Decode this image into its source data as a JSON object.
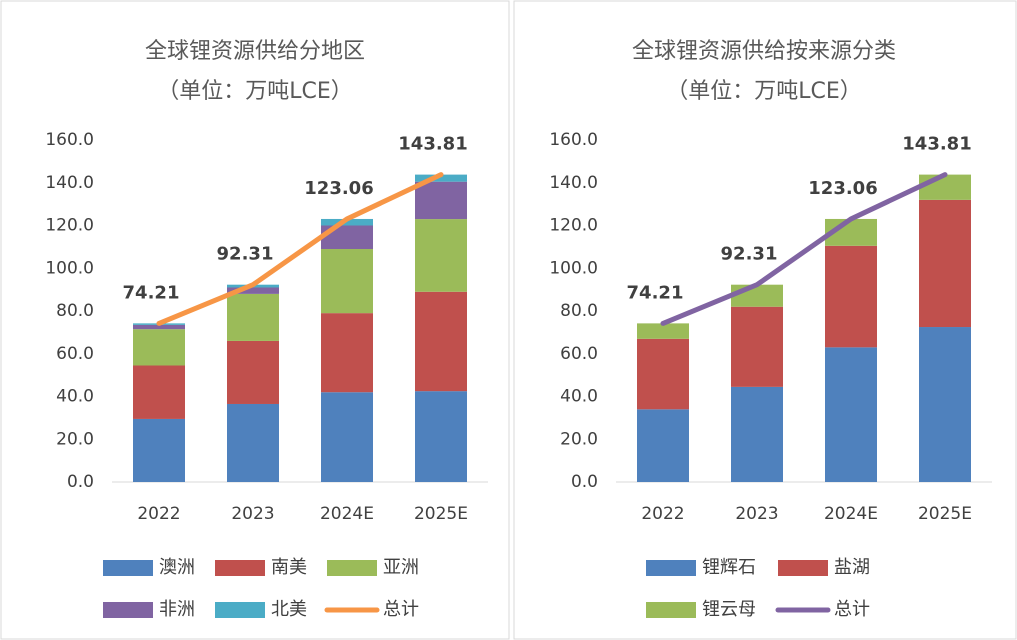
{
  "chart_data": [
    {
      "type": "bar",
      "stacked": true,
      "title": "全球锂资源供给分地区",
      "subtitle": "（单位：万吨LCE）",
      "categories": [
        "2022",
        "2023",
        "2024E",
        "2025E"
      ],
      "series": [
        {
          "name": "澳洲",
          "color": "#4f81bd",
          "values": [
            29.5,
            36.5,
            42,
            42.5
          ]
        },
        {
          "name": "南美",
          "color": "#c0504d",
          "values": [
            25,
            29.5,
            37,
            46.5
          ]
        },
        {
          "name": "亚洲",
          "color": "#9bbb59",
          "values": [
            17,
            22,
            30,
            34
          ]
        },
        {
          "name": "非洲",
          "color": "#8064a2",
          "values": [
            2,
            3,
            11,
            17.5
          ]
        },
        {
          "name": "北美",
          "color": "#4bacc6",
          "values": [
            0.71,
            1.31,
            3.06,
            3.31
          ]
        },
        {
          "name": "总计",
          "color": "#f79646",
          "type": "line",
          "values": [
            74.21,
            92.31,
            123.06,
            143.81
          ]
        }
      ],
      "ylim": [
        0,
        160
      ],
      "yticks": [
        {
          "value": 0,
          "label": "0.0"
        },
        {
          "value": 20,
          "label": "20.0"
        },
        {
          "value": 40,
          "label": "40.0"
        },
        {
          "value": 60,
          "label": "60.0"
        },
        {
          "value": 80,
          "label": "80.0"
        },
        {
          "value": 100,
          "label": "100.0"
        },
        {
          "value": 120,
          "label": "120.0"
        },
        {
          "value": 140,
          "label": "140.0"
        },
        {
          "value": 160,
          "label": "160.0"
        }
      ],
      "grid": false,
      "legend": "bottom"
    },
    {
      "type": "bar",
      "stacked": true,
      "title": "全球锂资源供给按来源分类",
      "subtitle": "（单位：万吨LCE）",
      "categories": [
        "2022",
        "2023",
        "2024E",
        "2025E"
      ],
      "series": [
        {
          "name": "锂辉石",
          "color": "#4f81bd",
          "values": [
            34,
            44.5,
            63,
            72.5
          ]
        },
        {
          "name": "盐湖",
          "color": "#c0504d",
          "values": [
            33,
            37.5,
            47.5,
            59.5
          ]
        },
        {
          "name": "锂云母",
          "color": "#9bbb59",
          "values": [
            7.21,
            10.31,
            12.56,
            11.81
          ]
        },
        {
          "name": "总计",
          "color": "#8064a2",
          "type": "line",
          "values": [
            74.21,
            92.31,
            123.06,
            143.81
          ]
        }
      ],
      "ylim": [
        0,
        160
      ],
      "yticks": [
        {
          "value": 0,
          "label": "0.0"
        },
        {
          "value": 20,
          "label": "20.0"
        },
        {
          "value": 40,
          "label": "40.0"
        },
        {
          "value": 60,
          "label": "60.0"
        },
        {
          "value": 80,
          "label": "80.0"
        },
        {
          "value": 100,
          "label": "100.0"
        },
        {
          "value": 120,
          "label": "120.0"
        },
        {
          "value": 140,
          "label": "140.0"
        },
        {
          "value": 160,
          "label": "160.0"
        }
      ],
      "grid": false,
      "legend": "bottom"
    }
  ]
}
